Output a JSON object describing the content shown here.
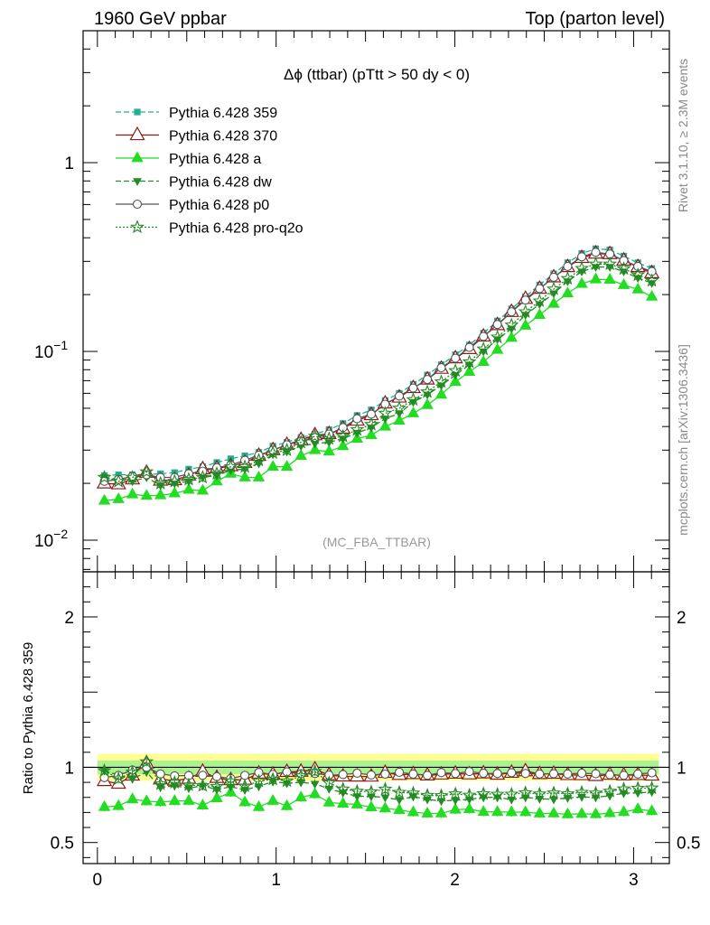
{
  "header": {
    "left": "1960 GeV ppbar",
    "right": "Top (parton level)"
  },
  "side": {
    "rivet": "Rivet 3.1.10, ≥ 2.3M events",
    "mcplots": "mcplots.cern.ch [arXiv:1306.3436]"
  },
  "chart_data": {
    "type": "line",
    "title": "Δϕ (ttbar) (pTtt > 50 dy < 0)",
    "analysis": "(MC_FBA_TTBAR)",
    "xlim": [
      -0.08,
      3.2
    ],
    "main_ylim": [
      0.0068,
      5.0
    ],
    "main_log": true,
    "main_ticks": [
      {
        "value": 1,
        "label": "1"
      },
      {
        "value": 0.1,
        "label": "10",
        "exp": "−1"
      },
      {
        "value": 0.01,
        "label": "10",
        "exp": "−2"
      }
    ],
    "ratio_ylabel": "Ratio to Pythia 6.428 359",
    "ratio_ylim": [
      0.36,
      2.3
    ],
    "ratio_ticks": [
      {
        "value": 0.5,
        "label": "0.5"
      },
      {
        "value": 1,
        "label": "1"
      },
      {
        "value": 2,
        "label": "2"
      }
    ],
    "x_ticks": [
      {
        "value": 0,
        "label": "0"
      },
      {
        "value": 1,
        "label": "1"
      },
      {
        "value": 2,
        "label": "2"
      },
      {
        "value": 3,
        "label": "3"
      }
    ],
    "x": [
      0.039,
      0.118,
      0.196,
      0.275,
      0.353,
      0.432,
      0.511,
      0.589,
      0.668,
      0.746,
      0.825,
      0.903,
      0.982,
      1.06,
      1.139,
      1.217,
      1.296,
      1.374,
      1.453,
      1.532,
      1.61,
      1.689,
      1.767,
      1.846,
      1.924,
      2.003,
      2.081,
      2.16,
      2.238,
      2.317,
      2.395,
      2.474,
      2.553,
      2.631,
      2.71,
      2.788,
      2.867,
      2.945,
      3.024,
      3.102
    ],
    "legend_placement": "top-left",
    "series": [
      {
        "name": "Pythia 6.428 359",
        "color": "#20b090",
        "dash": "6,3",
        "marker": "square",
        "values": [
          0.022,
          0.0222,
          0.0222,
          0.0222,
          0.0225,
          0.0228,
          0.0238,
          0.0245,
          0.0258,
          0.027,
          0.028,
          0.0292,
          0.0315,
          0.033,
          0.035,
          0.0365,
          0.0385,
          0.0415,
          0.0458,
          0.049,
          0.055,
          0.06,
          0.067,
          0.075,
          0.085,
          0.096,
          0.108,
          0.125,
          0.145,
          0.168,
          0.195,
          0.225,
          0.258,
          0.295,
          0.33,
          0.35,
          0.345,
          0.32,
          0.295,
          0.275
        ]
      },
      {
        "name": "Pythia 6.428 370",
        "color": "#8b1a1a",
        "dash": "",
        "marker": "open-triangle",
        "values": [
          0.02,
          0.0198,
          0.021,
          0.0228,
          0.0207,
          0.0208,
          0.022,
          0.0238,
          0.024,
          0.0247,
          0.0257,
          0.028,
          0.03,
          0.032,
          0.034,
          0.036,
          0.0365,
          0.039,
          0.043,
          0.046,
          0.053,
          0.057,
          0.064,
          0.071,
          0.081,
          0.092,
          0.103,
          0.12,
          0.138,
          0.162,
          0.19,
          0.215,
          0.247,
          0.28,
          0.313,
          0.33,
          0.328,
          0.303,
          0.28,
          0.26
        ]
      },
      {
        "name": "Pythia 6.428 a",
        "color": "#22dd22",
        "dash": "",
        "marker": "triangle",
        "values": [
          0.0162,
          0.0165,
          0.0175,
          0.0172,
          0.0173,
          0.0177,
          0.0185,
          0.0183,
          0.0205,
          0.0225,
          0.0215,
          0.0215,
          0.0245,
          0.0245,
          0.028,
          0.03,
          0.0295,
          0.0315,
          0.0345,
          0.036,
          0.04,
          0.043,
          0.047,
          0.052,
          0.059,
          0.069,
          0.078,
          0.088,
          0.102,
          0.118,
          0.137,
          0.156,
          0.179,
          0.203,
          0.228,
          0.241,
          0.24,
          0.225,
          0.213,
          0.195
        ]
      },
      {
        "name": "Pythia 6.428 dw",
        "color": "#228b22",
        "dash": "6,3",
        "marker": "down-triangle",
        "values": [
          0.0215,
          0.021,
          0.0205,
          0.0215,
          0.0195,
          0.02,
          0.0205,
          0.0215,
          0.022,
          0.0235,
          0.0238,
          0.0255,
          0.0285,
          0.0295,
          0.0315,
          0.0325,
          0.033,
          0.0345,
          0.037,
          0.0395,
          0.044,
          0.047,
          0.054,
          0.059,
          0.066,
          0.075,
          0.085,
          0.1,
          0.116,
          0.132,
          0.156,
          0.178,
          0.203,
          0.235,
          0.265,
          0.28,
          0.28,
          0.265,
          0.245,
          0.23
        ]
      },
      {
        "name": "Pythia 6.428 p0",
        "color": "#555555",
        "dash": "",
        "marker": "open-circle",
        "values": [
          0.0205,
          0.021,
          0.0218,
          0.0222,
          0.0215,
          0.0215,
          0.0225,
          0.0232,
          0.0242,
          0.025,
          0.0265,
          0.0282,
          0.03,
          0.032,
          0.0335,
          0.035,
          0.0365,
          0.0395,
          0.044,
          0.0465,
          0.0525,
          0.058,
          0.064,
          0.071,
          0.082,
          0.092,
          0.105,
          0.12,
          0.139,
          0.162,
          0.187,
          0.215,
          0.247,
          0.282,
          0.317,
          0.335,
          0.328,
          0.303,
          0.282,
          0.265
        ]
      },
      {
        "name": "Pythia 6.428 pro-q2o",
        "color": "#228b22",
        "dash": "2,2",
        "marker": "open-star",
        "values": [
          0.0215,
          0.0205,
          0.0215,
          0.023,
          0.02,
          0.0205,
          0.021,
          0.0215,
          0.0225,
          0.0245,
          0.0245,
          0.0265,
          0.029,
          0.03,
          0.033,
          0.0355,
          0.0345,
          0.0355,
          0.0385,
          0.041,
          0.047,
          0.05,
          0.0555,
          0.061,
          0.069,
          0.079,
          0.088,
          0.103,
          0.119,
          0.138,
          0.162,
          0.185,
          0.214,
          0.243,
          0.275,
          0.29,
          0.29,
          0.274,
          0.254,
          0.237
        ]
      }
    ]
  }
}
